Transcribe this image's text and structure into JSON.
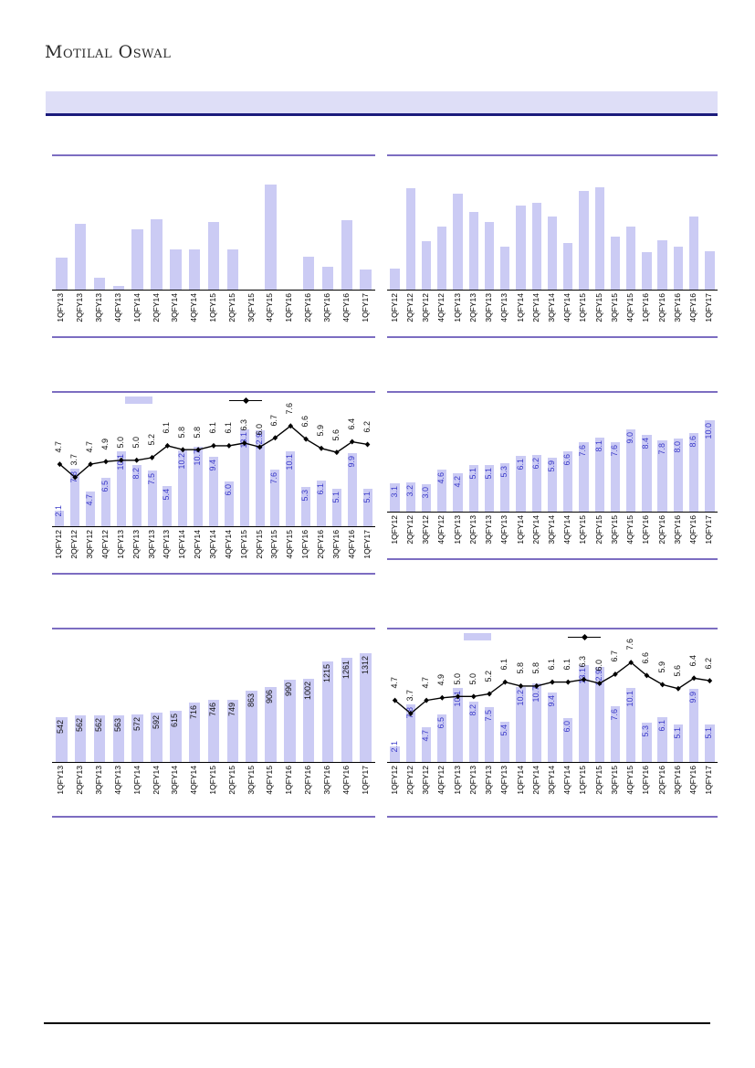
{
  "logo": {
    "text": "Motilal Oswal"
  },
  "colors": {
    "bar_fill": "#cbcbf4",
    "separator_rule": "#7c6dc1",
    "banner_bg": "#dedef7",
    "banner_border": "#1b1b7c",
    "data_label_blue": "#3a3ac8",
    "line_series": "#000000"
  },
  "chart_data": [
    {
      "id": "chart-top-left",
      "type": "bar",
      "categories": [
        "1QFY13",
        "2QFY13",
        "3QFY13",
        "4QFY13",
        "1QFY14",
        "2QFY14",
        "3QFY14",
        "4QFY14",
        "1QFY15",
        "2QFY15",
        "3QFY15",
        "4QFY15",
        "1QFY16",
        "2QFY16",
        "3QFY16",
        "4QFY16",
        "1QFY17"
      ],
      "values": [
        24,
        49,
        9,
        3,
        45,
        53,
        30,
        30,
        51,
        30,
        0,
        79,
        0,
        25,
        17,
        52,
        15
      ],
      "ylim": [
        0,
        100
      ],
      "data_labels": "none",
      "legend": false
    },
    {
      "id": "chart-top-right",
      "type": "bar",
      "categories": [
        "1QFY12",
        "2QFY12",
        "3QFY12",
        "4QFY12",
        "1QFY13",
        "2QFY13",
        "3QFY13",
        "4QFY13",
        "1QFY14",
        "2QFY14",
        "3QFY14",
        "4QFY14",
        "1QFY15",
        "2QFY15",
        "3QFY15",
        "4QFY15",
        "1QFY16",
        "2QFY16",
        "3QFY16",
        "4QFY16",
        "1QFY17"
      ],
      "values": [
        16,
        76,
        36,
        47,
        72,
        58,
        51,
        32,
        63,
        65,
        55,
        35,
        74,
        77,
        40,
        47,
        28,
        37,
        32,
        55,
        29
      ],
      "ylim": [
        0,
        100
      ],
      "data_labels": "none",
      "legend": false
    },
    {
      "id": "chart-mid-left",
      "type": "bar+line",
      "categories": [
        "1QFY12",
        "2QFY12",
        "3QFY12",
        "4QFY12",
        "1QFY13",
        "2QFY13",
        "3QFY13",
        "4QFY13",
        "1QFY14",
        "2QFY14",
        "3QFY14",
        "4QFY14",
        "1QFY15",
        "2QFY15",
        "3QFY15",
        "4QFY15",
        "1QFY16",
        "2QFY16",
        "3QFY16",
        "4QFY16",
        "1QFY17"
      ],
      "series": [
        {
          "name": "bars",
          "type": "bar",
          "values": [
            2.1,
            7.8,
            4.7,
            6.5,
            10.1,
            8.2,
            7.5,
            5.4,
            10.2,
            10.7,
            9.4,
            6.0,
            13.1,
            12.9,
            7.6,
            10.1,
            5.3,
            6.1,
            5.1,
            9.9,
            5.1
          ],
          "ylim": [
            0,
            16
          ],
          "label_color": "blue",
          "label_format": 1
        },
        {
          "name": "line",
          "type": "line",
          "values": [
            4.7,
            3.7,
            4.7,
            4.9,
            5.0,
            5.0,
            5.2,
            6.1,
            5.8,
            5.8,
            6.1,
            6.1,
            6.3,
            6.0,
            6.7,
            7.6,
            6.6,
            5.9,
            5.6,
            6.4,
            6.2
          ],
          "ylim": [
            0,
            9
          ],
          "label_color": "black",
          "label_format": 1
        }
      ],
      "legend": true
    },
    {
      "id": "chart-mid-right",
      "type": "bar",
      "categories": [
        "1QFY12",
        "2QFY12",
        "3QFY12",
        "4QFY12",
        "1QFY13",
        "2QFY13",
        "3QFY13",
        "4QFY13",
        "1QFY14",
        "2QFY14",
        "3QFY14",
        "4QFY14",
        "1QFY15",
        "2QFY15",
        "3QFY15",
        "4QFY15",
        "1QFY16",
        "2QFY16",
        "3QFY16",
        "4QFY16",
        "1QFY17"
      ],
      "values": [
        3.1,
        3.2,
        3.0,
        4.6,
        4.2,
        5.1,
        5.1,
        5.3,
        6.1,
        6.2,
        5.9,
        6.6,
        7.6,
        8.1,
        7.6,
        9.0,
        8.4,
        7.8,
        8.0,
        8.6,
        10.0
      ],
      "ylim": [
        0,
        13
      ],
      "data_labels": "blue",
      "label_format": 1,
      "legend": false
    },
    {
      "id": "chart-bottom-left",
      "type": "bar",
      "categories": [
        "1QFY13",
        "2QFY13",
        "3QFY13",
        "4QFY13",
        "1QFY14",
        "2QFY14",
        "3QFY14",
        "4QFY14",
        "1QFY15",
        "2QFY15",
        "3QFY15",
        "4QFY15",
        "1QFY16",
        "2QFY16",
        "3QFY16",
        "4QFY16",
        "1QFY17"
      ],
      "values": [
        542,
        562,
        562,
        563,
        572,
        592,
        615,
        716,
        746,
        749,
        863,
        906,
        990,
        1002,
        1215,
        1261,
        1312
      ],
      "ylim": [
        0,
        1600
      ],
      "data_labels": "black",
      "label_format": 0,
      "legend": false
    },
    {
      "id": "chart-bottom-right",
      "type": "bar+line",
      "categories": [
        "1QFY12",
        "2QFY12",
        "3QFY12",
        "4QFY12",
        "1QFY13",
        "2QFY13",
        "3QFY13",
        "4QFY13",
        "1QFY14",
        "2QFY14",
        "3QFY14",
        "4QFY14",
        "1QFY15",
        "2QFY15",
        "3QFY15",
        "4QFY15",
        "1QFY16",
        "2QFY16",
        "3QFY16",
        "4QFY16",
        "1QFY17"
      ],
      "series": [
        {
          "name": "bars",
          "type": "bar",
          "values": [
            2.1,
            7.8,
            4.7,
            6.5,
            10.1,
            8.2,
            7.5,
            5.4,
            10.2,
            10.7,
            9.4,
            6.0,
            13.1,
            12.9,
            7.6,
            10.1,
            5.3,
            6.1,
            5.1,
            9.9,
            5.1
          ],
          "ylim": [
            0,
            16
          ],
          "label_color": "blue",
          "label_format": 1
        },
        {
          "name": "line",
          "type": "line",
          "values": [
            4.7,
            3.7,
            4.7,
            4.9,
            5.0,
            5.0,
            5.2,
            6.1,
            5.8,
            5.8,
            6.1,
            6.1,
            6.3,
            6.0,
            6.7,
            7.6,
            6.6,
            5.9,
            5.6,
            6.4,
            6.2
          ],
          "ylim": [
            0,
            9
          ],
          "label_color": "black",
          "label_format": 1
        }
      ],
      "legend": true
    }
  ]
}
